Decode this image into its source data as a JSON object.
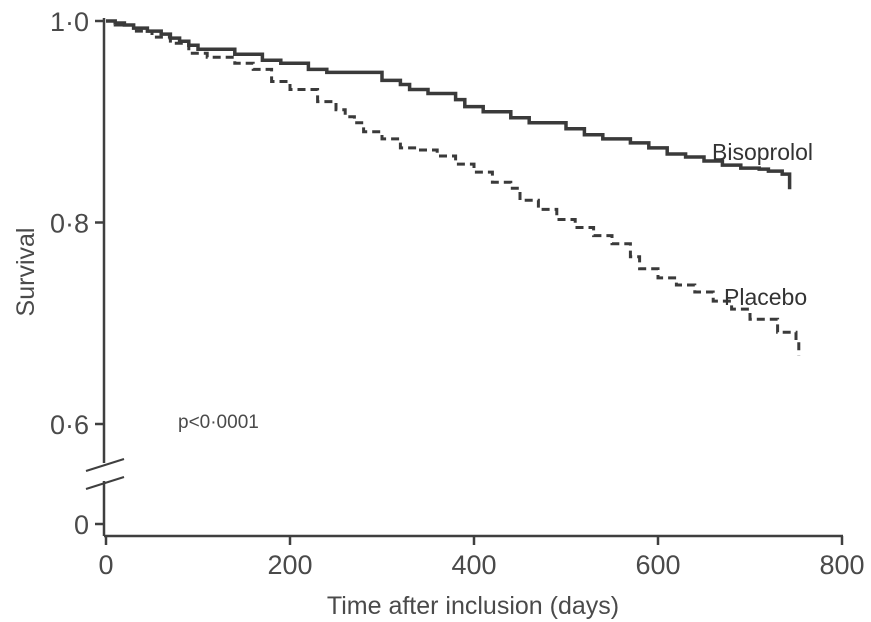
{
  "chart_data": {
    "type": "line",
    "xlabel": "Time after inclusion (days)",
    "ylabel": "Survival",
    "xlim": [
      0,
      800
    ],
    "ylim_display": [
      0,
      1.0
    ],
    "y_axis_break": "between 0 and 0·6",
    "x_ticks": [
      0,
      200,
      400,
      600,
      800
    ],
    "x_tick_labels": [
      "0",
      "200",
      "400",
      "600",
      "800"
    ],
    "y_ticks": [
      0,
      0.6,
      0.8,
      1.0
    ],
    "y_tick_labels": [
      "0",
      "0·6",
      "0·8",
      "1·0"
    ],
    "grid": false,
    "annotation": "p<0·0001",
    "series": [
      {
        "name": "Bisoprolol",
        "line_style": "solid",
        "color": "#3a3a3a",
        "points": [
          [
            0,
            1.0
          ],
          [
            10,
            0.998
          ],
          [
            20,
            0.996
          ],
          [
            30,
            0.993
          ],
          [
            45,
            0.99
          ],
          [
            60,
            0.987
          ],
          [
            70,
            0.983
          ],
          [
            80,
            0.98
          ],
          [
            90,
            0.976
          ],
          [
            100,
            0.972
          ],
          [
            140,
            0.967
          ],
          [
            170,
            0.961
          ],
          [
            190,
            0.958
          ],
          [
            220,
            0.952
          ],
          [
            240,
            0.949
          ],
          [
            300,
            0.941
          ],
          [
            320,
            0.937
          ],
          [
            330,
            0.932
          ],
          [
            350,
            0.928
          ],
          [
            380,
            0.922
          ],
          [
            390,
            0.915
          ],
          [
            410,
            0.91
          ],
          [
            440,
            0.904
          ],
          [
            460,
            0.899
          ],
          [
            500,
            0.893
          ],
          [
            520,
            0.887
          ],
          [
            540,
            0.883
          ],
          [
            570,
            0.879
          ],
          [
            590,
            0.874
          ],
          [
            610,
            0.868
          ],
          [
            630,
            0.865
          ],
          [
            650,
            0.861
          ],
          [
            670,
            0.857
          ],
          [
            690,
            0.854
          ],
          [
            710,
            0.853
          ],
          [
            720,
            0.851
          ],
          [
            735,
            0.848
          ],
          [
            743,
            0.84
          ],
          [
            743,
            0.833
          ]
        ]
      },
      {
        "name": "Placebo",
        "line_style": "dashed",
        "color": "#3a3a3a",
        "points": [
          [
            0,
            1.0
          ],
          [
            10,
            0.996
          ],
          [
            30,
            0.99
          ],
          [
            50,
            0.984
          ],
          [
            70,
            0.978
          ],
          [
            90,
            0.968
          ],
          [
            110,
            0.964
          ],
          [
            140,
            0.958
          ],
          [
            160,
            0.952
          ],
          [
            180,
            0.94
          ],
          [
            200,
            0.932
          ],
          [
            230,
            0.92
          ],
          [
            250,
            0.912
          ],
          [
            260,
            0.905
          ],
          [
            270,
            0.899
          ],
          [
            280,
            0.89
          ],
          [
            300,
            0.883
          ],
          [
            320,
            0.874
          ],
          [
            340,
            0.872
          ],
          [
            360,
            0.866
          ],
          [
            380,
            0.858
          ],
          [
            400,
            0.85
          ],
          [
            420,
            0.84
          ],
          [
            440,
            0.834
          ],
          [
            450,
            0.822
          ],
          [
            470,
            0.813
          ],
          [
            490,
            0.803
          ],
          [
            510,
            0.795
          ],
          [
            530,
            0.787
          ],
          [
            550,
            0.779
          ],
          [
            570,
            0.766
          ],
          [
            580,
            0.754
          ],
          [
            600,
            0.745
          ],
          [
            620,
            0.738
          ],
          [
            640,
            0.731
          ],
          [
            660,
            0.722
          ],
          [
            680,
            0.714
          ],
          [
            700,
            0.704
          ],
          [
            730,
            0.691
          ],
          [
            750,
            0.682
          ],
          [
            753,
            0.668
          ]
        ]
      }
    ]
  }
}
